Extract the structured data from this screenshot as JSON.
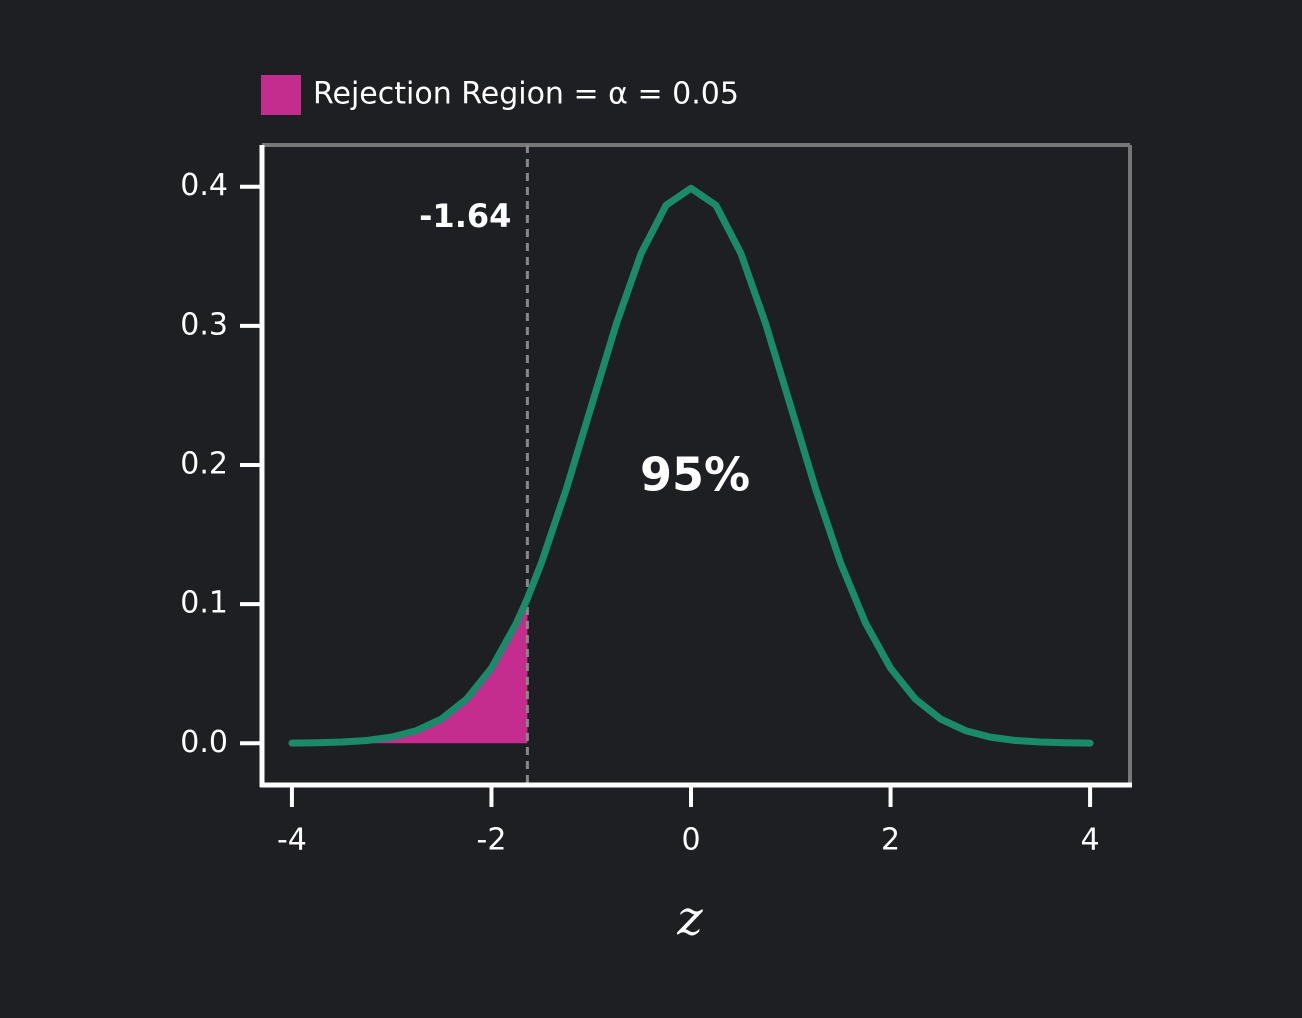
{
  "chart_data": {
    "type": "line",
    "x": [
      -4,
      -3.75,
      -3.5,
      -3.25,
      -3,
      -2.75,
      -2.5,
      -2.25,
      -2,
      -1.75,
      -1.64,
      -1.5,
      -1.25,
      -1,
      -0.75,
      -0.5,
      -0.25,
      0,
      0.25,
      0.5,
      0.75,
      1,
      1.25,
      1.5,
      1.75,
      2,
      2.25,
      2.5,
      2.75,
      3,
      3.25,
      3.5,
      3.75,
      4
    ],
    "values": [
      0.0001,
      0.0004,
      0.0009,
      0.002,
      0.0044,
      0.0091,
      0.0175,
      0.0317,
      0.054,
      0.0863,
      0.104,
      0.1295,
      0.1826,
      0.242,
      0.3011,
      0.3521,
      0.3867,
      0.3989,
      0.3867,
      0.3521,
      0.3011,
      0.242,
      0.1826,
      0.1295,
      0.0863,
      0.054,
      0.0317,
      0.0175,
      0.0091,
      0.0044,
      0.002,
      0.0009,
      0.0004,
      0.0001
    ],
    "color": "#1a8a6a",
    "critical_value": -1.64,
    "legend": {
      "label": "Rejection Region = α = 0.05",
      "color": "#c42d8e"
    },
    "center_label": "95%",
    "x_label": "z",
    "xlim": [
      -4.3,
      4.4
    ],
    "ylim": [
      -0.03,
      0.43
    ],
    "xticks": [
      -4,
      -2,
      0,
      2,
      4
    ],
    "yticks": [
      {
        "value": 0,
        "label": "0.0"
      },
      0.1,
      0.2,
      0.3,
      0.4
    ]
  }
}
